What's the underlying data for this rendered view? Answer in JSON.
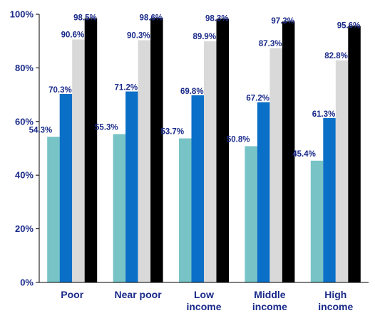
{
  "chart_data": {
    "type": "bar",
    "title": "",
    "xlabel": "",
    "ylabel": "",
    "ylim": [
      0,
      100
    ],
    "yticks": [
      0,
      20,
      40,
      60,
      80,
      100
    ],
    "ytick_labels": [
      "0%",
      "20%",
      "40%",
      "60%",
      "80%",
      "100%"
    ],
    "grid": false,
    "legend": "none",
    "categories": [
      [
        "Poor"
      ],
      [
        "Near poor"
      ],
      [
        "Low",
        "income"
      ],
      [
        "Middle",
        "income"
      ],
      [
        "High",
        "income"
      ]
    ],
    "series": [
      {
        "color": "#77c3c6",
        "values": [
          54.3,
          55.3,
          53.7,
          50.8,
          45.4
        ],
        "labels": [
          "54.3%",
          "55.3%",
          "53.7%",
          "50.8%",
          "45.4%"
        ]
      },
      {
        "color": "#0a6fc6",
        "values": [
          70.3,
          71.2,
          69.8,
          67.2,
          61.3
        ],
        "labels": [
          "70.3%",
          "71.2%",
          "69.8%",
          "67.2%",
          "61.3%"
        ]
      },
      {
        "color": "#d9d9d9",
        "values": [
          90.6,
          90.3,
          89.9,
          87.3,
          82.8
        ],
        "labels": [
          "90.6%",
          "90.3%",
          "89.9%",
          "87.3%",
          "82.8%"
        ]
      },
      {
        "color": "#000000",
        "values": [
          98.5,
          98.6,
          98.3,
          97.3,
          95.6
        ],
        "labels": [
          "98.5%",
          "98.6%",
          "98.3%",
          "97.3%",
          "95.6%"
        ]
      }
    ]
  }
}
